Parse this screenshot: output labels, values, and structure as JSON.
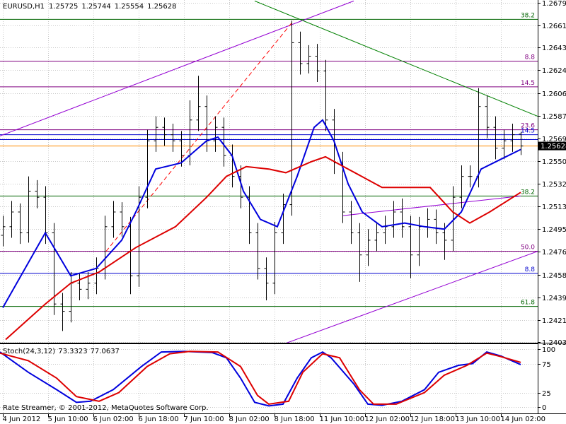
{
  "chart_data": [
    {
      "type": "ohlc",
      "title": "EURUSD,H1",
      "footer": "Rate Streamer, © 2001-2012, MetaQuotes Software Corp.",
      "color": "#000000",
      "bid_line_color": "#ff8c00",
      "last_price_color": "#000000",
      "grid": true,
      "x": [
        0,
        3,
        6,
        9,
        12,
        15,
        18,
        21,
        24,
        27,
        30,
        33,
        36,
        39,
        42,
        45,
        48,
        51,
        54,
        57,
        60,
        63,
        66,
        69,
        72,
        75,
        78,
        81,
        84,
        87,
        90,
        93,
        96,
        99,
        102,
        105,
        108,
        111,
        114,
        117,
        120,
        123,
        126,
        129,
        132,
        135,
        138,
        141,
        144,
        147,
        150,
        153,
        156,
        159,
        162,
        165,
        168,
        171,
        174,
        177,
        180,
        183
      ],
      "open": [
        1.249,
        1.2497,
        1.2509,
        1.2492,
        1.2526,
        1.2521,
        1.2492,
        1.2434,
        1.2428,
        1.2451,
        1.2446,
        1.2451,
        1.2463,
        1.2497,
        1.2509,
        1.2497,
        1.2457,
        1.2521,
        1.2567,
        1.2578,
        1.2572,
        1.2567,
        1.2555,
        1.2584,
        1.2595,
        1.2567,
        1.2578,
        1.2555,
        1.2538,
        1.2521,
        1.2492,
        1.2463,
        1.2451,
        1.2492,
        1.2515,
        1.2647,
        1.263,
        1.2636,
        1.2624,
        1.2584,
        1.2549,
        1.2509,
        1.2492,
        1.2474,
        1.2486,
        1.2492,
        1.2497,
        1.2509,
        1.2497,
        1.2474,
        1.2497,
        1.2503,
        1.2492,
        1.2486,
        1.2521,
        1.2538,
        1.2538,
        1.2595,
        1.2578,
        1.2561,
        1.2567,
        1.25725
      ],
      "high": [
        1.2506,
        1.2518,
        1.2516,
        1.2538,
        1.2535,
        1.253,
        1.25,
        1.2443,
        1.246,
        1.2459,
        1.246,
        1.2472,
        1.2506,
        1.2518,
        1.2517,
        1.2505,
        1.253,
        1.2576,
        1.2587,
        1.2586,
        1.2581,
        1.2575,
        1.26,
        1.262,
        1.2604,
        1.2587,
        1.2586,
        1.2564,
        1.2547,
        1.253,
        1.25,
        1.2472,
        1.2501,
        1.2524,
        1.2665,
        1.2656,
        1.2645,
        1.2646,
        1.2633,
        1.2593,
        1.2558,
        1.2518,
        1.25,
        1.2495,
        1.2501,
        1.2506,
        1.2518,
        1.252,
        1.2506,
        1.2505,
        1.2512,
        1.2511,
        1.25,
        1.253,
        1.2547,
        1.2547,
        1.261,
        1.2604,
        1.2587,
        1.2576,
        1.2581,
        1.25744
      ],
      "low": [
        1.2481,
        1.2488,
        1.2483,
        1.2484,
        1.2512,
        1.2483,
        1.2425,
        1.2412,
        1.2419,
        1.2437,
        1.2438,
        1.2442,
        1.2454,
        1.2488,
        1.2489,
        1.2442,
        1.2448,
        1.2512,
        1.2558,
        1.2563,
        1.2558,
        1.2546,
        1.2547,
        1.2575,
        1.2558,
        1.2558,
        1.2546,
        1.2529,
        1.2512,
        1.2483,
        1.2454,
        1.2437,
        1.2442,
        1.2483,
        1.2506,
        1.2621,
        1.2622,
        1.2615,
        1.2575,
        1.254,
        1.25,
        1.2483,
        1.2452,
        1.2465,
        1.2477,
        1.2483,
        1.2488,
        1.2488,
        1.2455,
        1.2465,
        1.2488,
        1.2483,
        1.247,
        1.2477,
        1.2512,
        1.2529,
        1.2529,
        1.2569,
        1.2552,
        1.2552,
        1.2558,
        1.25554
      ],
      "close": [
        1.2497,
        1.2509,
        1.2492,
        1.2526,
        1.2521,
        1.2492,
        1.2434,
        1.2428,
        1.2451,
        1.2446,
        1.2451,
        1.2463,
        1.2497,
        1.2509,
        1.2497,
        1.2457,
        1.2521,
        1.2567,
        1.2578,
        1.2572,
        1.2567,
        1.2555,
        1.2584,
        1.2595,
        1.2567,
        1.2578,
        1.2555,
        1.2538,
        1.2521,
        1.2492,
        1.2463,
        1.2451,
        1.2492,
        1.2515,
        1.2647,
        1.263,
        1.2636,
        1.2624,
        1.2584,
        1.2549,
        1.2509,
        1.2492,
        1.2474,
        1.2486,
        1.2492,
        1.2497,
        1.2509,
        1.2497,
        1.2474,
        1.2497,
        1.2503,
        1.2492,
        1.2486,
        1.2521,
        1.2538,
        1.2538,
        1.2595,
        1.2578,
        1.2561,
        1.2567,
        1.2572,
        1.25628
      ],
      "series": [
        {
          "color": "#0000dd",
          "x": [
            0,
            15,
            24,
            33,
            42,
            47,
            54,
            63,
            72,
            76,
            81,
            85,
            91,
            97,
            104,
            110,
            113,
            117,
            122,
            127,
            134,
            142,
            149,
            156,
            162,
            169,
            176,
            183
          ],
          "values": [
            1.2431,
            1.2492,
            1.2457,
            1.2463,
            1.2486,
            1.2509,
            1.2544,
            1.2549,
            1.2567,
            1.257,
            1.2555,
            1.2526,
            1.2503,
            1.2497,
            1.2538,
            1.2578,
            1.2584,
            1.2567,
            1.2532,
            1.2509,
            1.2497,
            1.25,
            1.2497,
            1.2495,
            1.2509,
            1.2544,
            1.2552,
            1.256
          ]
        },
        {
          "color": "#dd0000",
          "x": [
            1,
            15,
            24,
            34,
            47,
            61,
            72,
            79,
            86,
            94,
            100,
            109,
            114,
            122,
            134,
            151,
            159,
            165,
            172,
            183
          ],
          "values": [
            1.2405,
            1.2434,
            1.2451,
            1.246,
            1.248,
            1.2497,
            1.2521,
            1.2538,
            1.2546,
            1.2544,
            1.2541,
            1.255,
            1.2554,
            1.2544,
            1.2529,
            1.2529,
            1.2509,
            1.25,
            1.2509,
            1.2525
          ]
        }
      ],
      "levels": [
        {
          "value": 1.2666,
          "color": "#006400",
          "label": "38.2"
        },
        {
          "value": 1.2632,
          "color": "#800080",
          "label": "8.8"
        },
        {
          "value": 1.2611,
          "color": "#800080",
          "label": "14.5"
        },
        {
          "value": 1.2576,
          "color": "#800080",
          "label": "23.6"
        },
        {
          "value": 1.2572,
          "color": "#0000cd",
          "label": "14.5"
        },
        {
          "value": 1.2568,
          "color": "#0000cd"
        },
        {
          "value": 1.2522,
          "color": "#006400",
          "label": "38.2"
        },
        {
          "value": 1.2477,
          "color": "#800080",
          "label": "50.0"
        },
        {
          "value": 1.2459,
          "color": "#0000cd",
          "label": "8.8"
        },
        {
          "value": 1.2432,
          "color": "#006400",
          "label": "61.8"
        }
      ],
      "trendlines": [
        {
          "x": [
            -1,
            124
          ],
          "values": [
            1.2571,
            1.2681
          ],
          "color": "#9400d3"
        },
        {
          "x": [
            89,
            189
          ],
          "values": [
            1.2681,
            1.2587
          ],
          "color": "#008000"
        },
        {
          "x": [
            36.5,
            102.75
          ],
          "values": [
            1.2477,
            1.2665
          ],
          "color": "#ff0000",
          "dashed": true
        },
        {
          "x": [
            100,
            189
          ],
          "values": [
            1.2402,
            1.2477
          ],
          "color": "#9400d3"
        },
        {
          "x": [
            120,
            183
          ],
          "values": [
            1.2506,
            1.2522
          ],
          "color": "#9400d3"
        }
      ],
      "xlim": [
        -1,
        189
      ],
      "ylim": [
        1.2403,
        1.26795
      ],
      "xticks": [
        {
          "value": 0,
          "label": "4 Jun 2012"
        },
        {
          "value": 16,
          "label": "5 Jun 10:00"
        },
        {
          "value": 32,
          "label": "6 Jun 02:00"
        },
        {
          "value": 48,
          "label": "6 Jun 18:00"
        },
        {
          "value": 64,
          "label": "7 Jun 10:00"
        },
        {
          "value": 80,
          "label": "8 Jun 02:00"
        },
        {
          "value": 96,
          "label": "8 Jun 18:00"
        },
        {
          "value": 112,
          "label": "11 Jun 10:00"
        },
        {
          "value": 128,
          "label": "12 Jun 02:00"
        },
        {
          "value": 144,
          "label": "12 Jun 18:00"
        },
        {
          "value": 160,
          "label": "13 Jun 10:00"
        },
        {
          "value": 176,
          "label": "14 Jun 02:00"
        }
      ],
      "yticks": [
        1.26795,
        {
          "value": 1.2661,
          "label": "1.26610"
        },
        {
          "value": 1.2643,
          "label": "1.26430"
        },
        1.26245,
        {
          "value": 1.2606,
          "label": "1.26060"
        },
        1.25875,
        {
          "value": 1.2569,
          "label": "1.25690"
        },
        1.25505,
        {
          "value": 1.2532,
          "label": "1.25320"
        },
        1.25135,
        {
          "value": 1.2495,
          "label": "1.24950"
        },
        1.24765,
        {
          "value": 1.2458,
          "label": "1.24580"
        },
        1.24395,
        {
          "value": 1.2421,
          "label": "1.24210"
        },
        {
          "value": 1.2403,
          "label": "1.24030"
        }
      ]
    },
    {
      "type": "line",
      "title": "Stoch(24,3,12)",
      "grid": true,
      "series": [
        {
          "color": "#0000dd",
          "x": [
            -1,
            9,
            19,
            26,
            31,
            39,
            49,
            56,
            64,
            74,
            79,
            84,
            89,
            94,
            99,
            104,
            109,
            113,
            116,
            124,
            129,
            134,
            141,
            149,
            154,
            161,
            166,
            171,
            176,
            183
          ],
          "values": [
            95,
            60,
            30,
            8,
            10,
            30,
            70,
            95,
            96,
            94,
            85,
            50,
            8,
            2,
            5,
            50,
            85,
            95,
            85,
            40,
            5,
            3,
            10,
            30,
            60,
            72,
            75,
            95,
            88,
            73.3323
          ]
        },
        {
          "color": "#dd0000",
          "x": [
            -1,
            9,
            19,
            26,
            34,
            41,
            51,
            59,
            66,
            76,
            84,
            90,
            94,
            101,
            106,
            113,
            119,
            126,
            131,
            139,
            149,
            156,
            164,
            171,
            176,
            183
          ],
          "values": [
            93,
            80,
            50,
            18,
            10,
            25,
            70,
            92,
            96,
            95,
            70,
            20,
            5,
            10,
            60,
            92,
            85,
            30,
            5,
            5,
            25,
            55,
            72,
            93,
            87,
            77.0637
          ]
        }
      ],
      "xlim": [
        -1,
        189
      ],
      "ylim": [
        0,
        100
      ],
      "yticks": [
        100,
        75,
        25,
        0
      ]
    }
  ]
}
